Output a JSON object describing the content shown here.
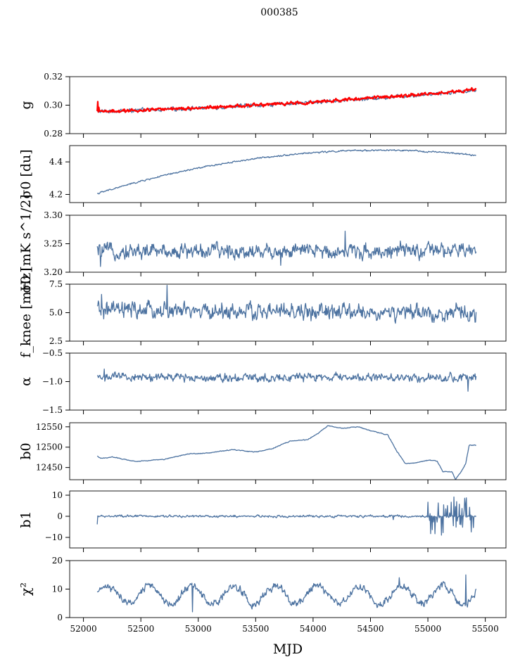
{
  "chart_data": {
    "type": "line",
    "title": "000385",
    "xlabel": "MJD",
    "xlim": [
      51880,
      55680
    ],
    "xticks": [
      52000,
      52500,
      53000,
      53500,
      54000,
      54500,
      55000,
      55500
    ],
    "x_range": [
      52120,
      55420
    ],
    "colors": {
      "series": "#4c72a0",
      "fit": "#ff0000",
      "axis": "#000000"
    },
    "panels": [
      {
        "ylabel": "g",
        "ylim": [
          0.28,
          0.32
        ],
        "yticks": [
          0.28,
          0.3,
          0.32
        ],
        "ytick_labels": [
          "0.28",
          "0.30",
          "0.32"
        ],
        "series": {
          "name": "g",
          "start": 0.2955,
          "end": 0.3105,
          "curvature": -0.002,
          "noise": 0.0011,
          "spikes": []
        },
        "fit_series": {
          "name": "g fit",
          "start": 0.2955,
          "end": 0.3108,
          "curvature": -0.002,
          "noise": 0.0009,
          "start_spike": 0.3025
        }
      },
      {
        "ylabel": "σ0 [du]",
        "ylim": [
          4.15,
          4.5
        ],
        "yticks": [
          4.2,
          4.4
        ],
        "ytick_labels": [
          "4.2",
          "4.4"
        ],
        "series": {
          "name": "sigma0",
          "start": 4.205,
          "end": 4.44,
          "curvature": 0.12,
          "noise": 0.004,
          "spikes": []
        }
      },
      {
        "ylabel": "σ0 [mK s^1/2]",
        "ylim": [
          3.2,
          3.3
        ],
        "yticks": [
          3.2,
          3.25,
          3.3
        ],
        "ytick_labels": [
          "3.20",
          "3.25",
          "3.30"
        ],
        "series": {
          "name": "sigma0_mK",
          "start": 3.237,
          "end": 3.237,
          "curvature": 0,
          "noise": 0.011,
          "spikes": [
            [
              52150,
              3.21
            ],
            [
              53720,
              3.212
            ],
            [
              54280,
              3.272
            ]
          ]
        }
      },
      {
        "ylabel": "f_knee [mHz]",
        "ylim": [
          2.5,
          7.5
        ],
        "yticks": [
          2.5,
          5.0,
          7.5
        ],
        "ytick_labels": [
          "2.5",
          "5.0",
          "7.5"
        ],
        "series": {
          "name": "fknee",
          "start": 5.2,
          "end": 4.9,
          "curvature": 0,
          "noise": 0.6,
          "spikes": [
            [
              52730,
              7.4
            ],
            [
              52160,
              6.6
            ]
          ]
        }
      },
      {
        "ylabel": "α",
        "ylim": [
          -1.5,
          -0.5
        ],
        "yticks": [
          -1.5,
          -1.0,
          -0.5
        ],
        "ytick_labels": [
          "−1.5",
          "−1.0",
          "−0.5"
        ],
        "series": {
          "name": "alpha",
          "start": -0.92,
          "end": -0.93,
          "curvature": 0,
          "noise": 0.06,
          "spikes": [
            [
              55350,
              -1.17
            ],
            [
              52180,
              -0.78
            ]
          ]
        }
      },
      {
        "ylabel": "b0",
        "ylim": [
          12420,
          12560
        ],
        "yticks": [
          12450,
          12500,
          12550
        ],
        "ytick_labels": [
          "12450",
          "12500",
          "12550"
        ],
        "series": {
          "name": "b0",
          "noise": 0.8,
          "knots": [
            [
              52120,
              12478
            ],
            [
              52150,
              12472
            ],
            [
              52250,
              12476
            ],
            [
              52450,
              12465
            ],
            [
              52700,
              12470
            ],
            [
              52900,
              12483
            ],
            [
              53100,
              12486
            ],
            [
              53300,
              12494
            ],
            [
              53500,
              12488
            ],
            [
              53650,
              12497
            ],
            [
              53800,
              12515
            ],
            [
              53950,
              12518
            ],
            [
              54050,
              12535
            ],
            [
              54130,
              12553
            ],
            [
              54250,
              12546
            ],
            [
              54400,
              12550
            ],
            [
              54500,
              12540
            ],
            [
              54650,
              12530
            ],
            [
              54730,
              12490
            ],
            [
              54800,
              12460
            ],
            [
              54900,
              12462
            ],
            [
              55000,
              12468
            ],
            [
              55080,
              12466
            ],
            [
              55130,
              12440
            ],
            [
              55210,
              12440
            ],
            [
              55240,
              12420
            ],
            [
              55290,
              12440
            ],
            [
              55330,
              12460
            ],
            [
              55360,
              12505
            ],
            [
              55420,
              12505
            ]
          ]
        }
      },
      {
        "ylabel": "b1",
        "ylim": [
          -15,
          12
        ],
        "yticks": [
          -10,
          0,
          10
        ],
        "ytick_labels": [
          "−10",
          "0",
          "10"
        ],
        "series": {
          "name": "b1",
          "start": 0,
          "end": 0,
          "curvature": 0,
          "noise": 0.45,
          "spikes": [
            [
              52120,
              -3.8
            ],
            [
              54700,
              -1.6
            ]
          ],
          "burst": {
            "from": 55000,
            "to": 55400,
            "amp": 9
          }
        }
      },
      {
        "ylabel": "χ²",
        "ylim": [
          0,
          20
        ],
        "yticks": [
          0,
          10,
          20
        ],
        "ytick_labels": [
          "0",
          "10",
          "20"
        ],
        "series": {
          "name": "chi2",
          "start": 8,
          "end": 8,
          "curvature": 0,
          "noise": 1.1,
          "periodic": {
            "amp": 3.2,
            "period": 365.25
          },
          "spikes": [
            [
              52950,
              2.0
            ],
            [
              55330,
              15.0
            ],
            [
              54750,
              14.0
            ]
          ]
        }
      }
    ]
  }
}
